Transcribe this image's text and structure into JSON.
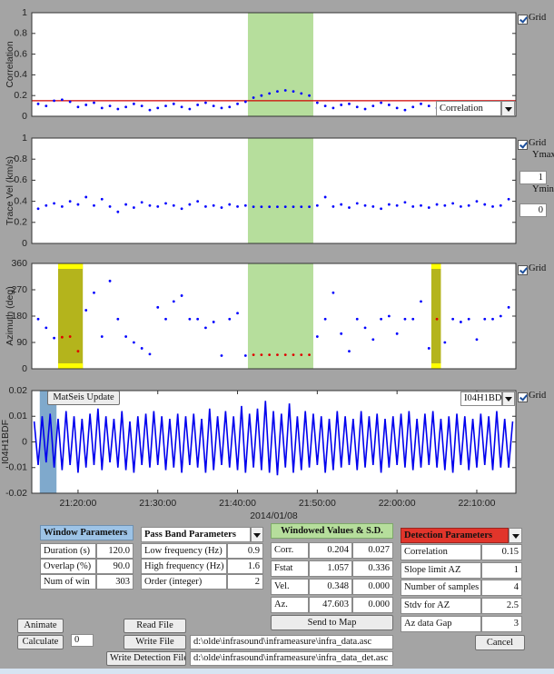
{
  "chart_data": [
    {
      "type": "scatter",
      "ylabel": "Correlation",
      "xlim": [
        1274.2,
        1334.9
      ],
      "ylim": [
        0,
        1
      ],
      "yticks": [
        0,
        0.2,
        0.4,
        0.6,
        0.8,
        1
      ],
      "color": "#0000ff",
      "window": [
        1301.3,
        1309.5
      ],
      "window_color": "#b6de9c",
      "threshold": 0.15,
      "threshold_color": "#d00000",
      "x": [
        1275,
        1276,
        1277,
        1278,
        1279,
        1280,
        1281,
        1282,
        1283,
        1284,
        1285,
        1286,
        1287,
        1288,
        1289,
        1290,
        1291,
        1292,
        1293,
        1294,
        1295,
        1296,
        1297,
        1298,
        1299,
        1300,
        1301,
        1302,
        1303,
        1304,
        1305,
        1306,
        1307,
        1308,
        1309,
        1310,
        1311,
        1312,
        1313,
        1314,
        1315,
        1316,
        1317,
        1318,
        1319,
        1320,
        1321,
        1322,
        1323,
        1324,
        1325,
        1326,
        1327,
        1328,
        1329,
        1330,
        1331,
        1332,
        1333,
        1334
      ],
      "values": [
        0.12,
        0.1,
        0.15,
        0.16,
        0.14,
        0.09,
        0.11,
        0.13,
        0.08,
        0.1,
        0.07,
        0.09,
        0.12,
        0.1,
        0.06,
        0.08,
        0.1,
        0.12,
        0.09,
        0.07,
        0.11,
        0.13,
        0.1,
        0.08,
        0.09,
        0.12,
        0.14,
        0.18,
        0.2,
        0.22,
        0.24,
        0.25,
        0.24,
        0.22,
        0.2,
        0.13,
        0.1,
        0.08,
        0.11,
        0.12,
        0.09,
        0.07,
        0.1,
        0.13,
        0.11,
        0.08,
        0.06,
        0.09,
        0.12,
        0.1,
        0.08,
        0.11,
        0.09,
        0.07,
        0.1,
        0.12,
        0.08,
        0.11,
        0.13,
        0.1
      ]
    },
    {
      "type": "scatter",
      "ylabel": "Trace Vel (km/s)",
      "xlim": [
        1274.2,
        1334.9
      ],
      "ylim": [
        0,
        1
      ],
      "yticks": [
        0,
        0.2,
        0.4,
        0.6,
        0.8,
        1
      ],
      "color": "#0000ff",
      "window": [
        1301.3,
        1309.5
      ],
      "window_color": "#b6de9c",
      "x": [
        1275,
        1276,
        1277,
        1278,
        1279,
        1280,
        1281,
        1282,
        1283,
        1284,
        1285,
        1286,
        1287,
        1288,
        1289,
        1290,
        1291,
        1292,
        1293,
        1294,
        1295,
        1296,
        1297,
        1298,
        1299,
        1300,
        1301,
        1302,
        1303,
        1304,
        1305,
        1306,
        1307,
        1308,
        1309,
        1310,
        1311,
        1312,
        1313,
        1314,
        1315,
        1316,
        1317,
        1318,
        1319,
        1320,
        1321,
        1322,
        1323,
        1324,
        1325,
        1326,
        1327,
        1328,
        1329,
        1330,
        1331,
        1332,
        1333,
        1334
      ],
      "values": [
        0.33,
        0.36,
        0.38,
        0.35,
        0.4,
        0.37,
        0.44,
        0.36,
        0.42,
        0.35,
        0.3,
        0.37,
        0.34,
        0.39,
        0.36,
        0.35,
        0.38,
        0.36,
        0.33,
        0.37,
        0.4,
        0.35,
        0.36,
        0.34,
        0.37,
        0.35,
        0.36,
        0.348,
        0.348,
        0.348,
        0.348,
        0.348,
        0.348,
        0.348,
        0.348,
        0.36,
        0.44,
        0.35,
        0.37,
        0.34,
        0.38,
        0.36,
        0.35,
        0.33,
        0.37,
        0.36,
        0.39,
        0.35,
        0.36,
        0.34,
        0.37,
        0.36,
        0.38,
        0.35,
        0.36,
        0.4,
        0.37,
        0.35,
        0.36,
        0.42
      ]
    },
    {
      "type": "scatter",
      "ylabel": "Azimuth (deg)",
      "xlim": [
        1274.2,
        1334.9
      ],
      "ylim": [
        0,
        360
      ],
      "yticks": [
        0,
        90,
        180,
        270,
        360
      ],
      "color": "#0000ff",
      "inside_color": "#e00000",
      "window": [
        1301.3,
        1309.5
      ],
      "window_color": "#b6de9c",
      "detections": [
        [
          1277.5,
          1280.6
        ],
        [
          1324.3,
          1325.5
        ]
      ],
      "detection_color": "#b4b41c",
      "detection_cap_color": "#ffff00",
      "x": [
        1275,
        1276,
        1277,
        1278,
        1279,
        1280,
        1281,
        1282,
        1283,
        1284,
        1285,
        1286,
        1287,
        1288,
        1289,
        1290,
        1291,
        1292,
        1293,
        1294,
        1295,
        1296,
        1297,
        1298,
        1299,
        1300,
        1301,
        1302,
        1303,
        1304,
        1305,
        1306,
        1307,
        1308,
        1309,
        1310,
        1311,
        1312,
        1313,
        1314,
        1315,
        1316,
        1317,
        1318,
        1319,
        1320,
        1321,
        1322,
        1323,
        1324,
        1325,
        1326,
        1327,
        1328,
        1329,
        1330,
        1331,
        1332,
        1333,
        1334
      ],
      "values": [
        170,
        140,
        105,
        108,
        110,
        60,
        200,
        260,
        110,
        300,
        170,
        110,
        90,
        70,
        50,
        210,
        170,
        230,
        250,
        170,
        170,
        140,
        160,
        45,
        170,
        190,
        45,
        47.6,
        47.6,
        47.6,
        47.6,
        47.6,
        47.6,
        47.6,
        47.6,
        110,
        170,
        260,
        120,
        60,
        170,
        140,
        100,
        170,
        180,
        120,
        170,
        170,
        230,
        70,
        170,
        90,
        170,
        160,
        170,
        100,
        170,
        170,
        180,
        210
      ]
    },
    {
      "type": "line",
      "ylabel": "I04H1BDF",
      "xlabel": "2014/01/08",
      "xlim": [
        1274.2,
        1334.9
      ],
      "ylim": [
        -0.02,
        0.02
      ],
      "yticks": [
        -0.02,
        -0.01,
        0,
        0.01,
        0.02
      ],
      "color": "#0000ee",
      "highlight": [
        1275.2,
        1277.3
      ],
      "highlight_color": "#7fa9cc",
      "xticks": [
        {
          "value": 1280,
          "label": "21:20:00"
        },
        {
          "value": 1290,
          "label": "21:30:00"
        },
        {
          "value": 1300,
          "label": "21:40:00"
        },
        {
          "value": 1310,
          "label": "21:50:00"
        },
        {
          "value": 1320,
          "label": "22:00:00"
        },
        {
          "value": 1330,
          "label": "22:10:00"
        }
      ],
      "x": [
        1274.5,
        1275,
        1275.5,
        1276,
        1276.5,
        1277,
        1277.5,
        1278,
        1278.5,
        1279,
        1279.5,
        1280,
        1280.5,
        1281,
        1281.5,
        1282,
        1282.5,
        1283,
        1283.5,
        1284,
        1284.5,
        1285,
        1285.5,
        1286,
        1286.5,
        1287,
        1287.5,
        1288,
        1288.5,
        1289,
        1289.5,
        1290,
        1290.5,
        1291,
        1291.5,
        1292,
        1292.5,
        1293,
        1293.5,
        1294,
        1294.5,
        1295,
        1295.5,
        1296,
        1296.5,
        1297,
        1297.5,
        1298,
        1298.5,
        1299,
        1299.5,
        1300,
        1300.5,
        1301,
        1301.5,
        1302,
        1302.5,
        1303,
        1303.5,
        1304,
        1304.5,
        1305,
        1305.5,
        1306,
        1306.5,
        1307,
        1307.5,
        1308,
        1308.5,
        1309,
        1309.5,
        1310,
        1310.5,
        1311,
        1311.5,
        1312,
        1312.5,
        1313,
        1313.5,
        1314,
        1314.5,
        1315,
        1315.5,
        1316,
        1316.5,
        1317,
        1317.5,
        1318,
        1318.5,
        1319,
        1319.5,
        1320,
        1320.5,
        1321,
        1321.5,
        1322,
        1322.5,
        1323,
        1323.5,
        1324,
        1324.5,
        1325,
        1325.5,
        1326,
        1326.5,
        1327,
        1327.5,
        1328,
        1328.5,
        1329,
        1329.5,
        1330,
        1330.5,
        1331,
        1331.5,
        1332,
        1332.5,
        1333,
        1333.5,
        1334,
        1334.5
      ],
      "values": [
        0.008,
        -0.009,
        0.01,
        -0.008,
        0.011,
        -0.01,
        0.009,
        -0.011,
        0.012,
        -0.009,
        0.01,
        -0.012,
        0.009,
        -0.01,
        0.011,
        -0.009,
        0.013,
        -0.011,
        0.01,
        -0.008,
        0.009,
        -0.01,
        0.012,
        -0.011,
        0.008,
        -0.012,
        0.01,
        -0.009,
        0.011,
        -0.01,
        0.012,
        -0.009,
        0.01,
        -0.011,
        0.009,
        -0.01,
        0.011,
        -0.012,
        0.01,
        -0.009,
        0.011,
        -0.01,
        0.009,
        -0.012,
        0.013,
        -0.011,
        0.01,
        -0.009,
        0.012,
        -0.01,
        0.01,
        -0.011,
        0.014,
        -0.012,
        0.011,
        -0.01,
        0.013,
        -0.011,
        0.016,
        -0.012,
        0.012,
        -0.013,
        0.011,
        -0.01,
        0.015,
        -0.012,
        0.01,
        -0.011,
        0.012,
        -0.01,
        0.011,
        -0.009,
        0.01,
        -0.012,
        0.009,
        -0.011,
        0.012,
        -0.01,
        0.01,
        -0.009,
        0.009,
        -0.011,
        0.012,
        -0.01,
        0.01,
        -0.009,
        0.011,
        -0.012,
        0.009,
        -0.01,
        0.01,
        -0.009,
        0.011,
        -0.01,
        0.012,
        -0.011,
        0.009,
        -0.01,
        0.011,
        -0.009,
        0.012,
        -0.01,
        0.009,
        -0.011,
        0.01,
        -0.012,
        0.011,
        -0.009,
        0.01,
        -0.011,
        0.009,
        -0.01,
        0.011,
        -0.009,
        0.01,
        -0.011,
        0.012,
        -0.01,
        0.009,
        -0.01,
        0.008
      ]
    }
  ],
  "plot_controls": {
    "grid_labels": [
      "Grid",
      "Grid",
      "Grid",
      "Grid"
    ],
    "plot_menu": "Correlation",
    "ymax_label": "Ymax",
    "ymax": "1",
    "ymin_label": "Ymin",
    "ymin": "0",
    "update_button": "MatSeis Update",
    "channel_menu": "I04H1BDF"
  },
  "window_parameters": {
    "title": "Window Parameters",
    "rows": [
      [
        "Duration (s)",
        "120.0"
      ],
      [
        "Overlap (%)",
        "90.0"
      ],
      [
        "Num of win",
        "303"
      ]
    ]
  },
  "pass_band_parameters": {
    "title": "Pass Band Parameters",
    "rows": [
      [
        "Low frequency (Hz)",
        "0.9"
      ],
      [
        "High frequency (Hz)",
        "1.6"
      ],
      [
        "Order (integer)",
        "2"
      ]
    ]
  },
  "windowed_values": {
    "title": "Windowed Values & S.D.",
    "rows": [
      [
        "Corr.",
        "0.204",
        "0.027"
      ],
      [
        "Fstat",
        "1.057",
        "0.336"
      ],
      [
        "Vel.",
        "0.348",
        "0.000"
      ],
      [
        "Az.",
        "47.603",
        "0.000"
      ]
    ],
    "button": "Send to Map"
  },
  "detection_parameters": {
    "title": "Detection Parameters",
    "rows": [
      [
        "Correlation",
        "0.15"
      ],
      [
        "Slope limit AZ",
        "1"
      ],
      [
        "Number of samples",
        "4"
      ],
      [
        "Stdv for AZ",
        "2.5"
      ],
      [
        "Az data Gap",
        "3"
      ]
    ],
    "button": "Cancel"
  },
  "buttons": {
    "animate": "Animate",
    "calculate": "Calculate",
    "counter": "0",
    "read_file": "Read File",
    "write_file": "Write File",
    "write_detection_file": "Write Detection File"
  },
  "files": {
    "data_file": "d:\\olde\\infrasound\\inframeasure\\infra_data.asc",
    "detection_file": "d:\\olde\\infrasound\\inframeasure\\infra_data_det.asc"
  }
}
